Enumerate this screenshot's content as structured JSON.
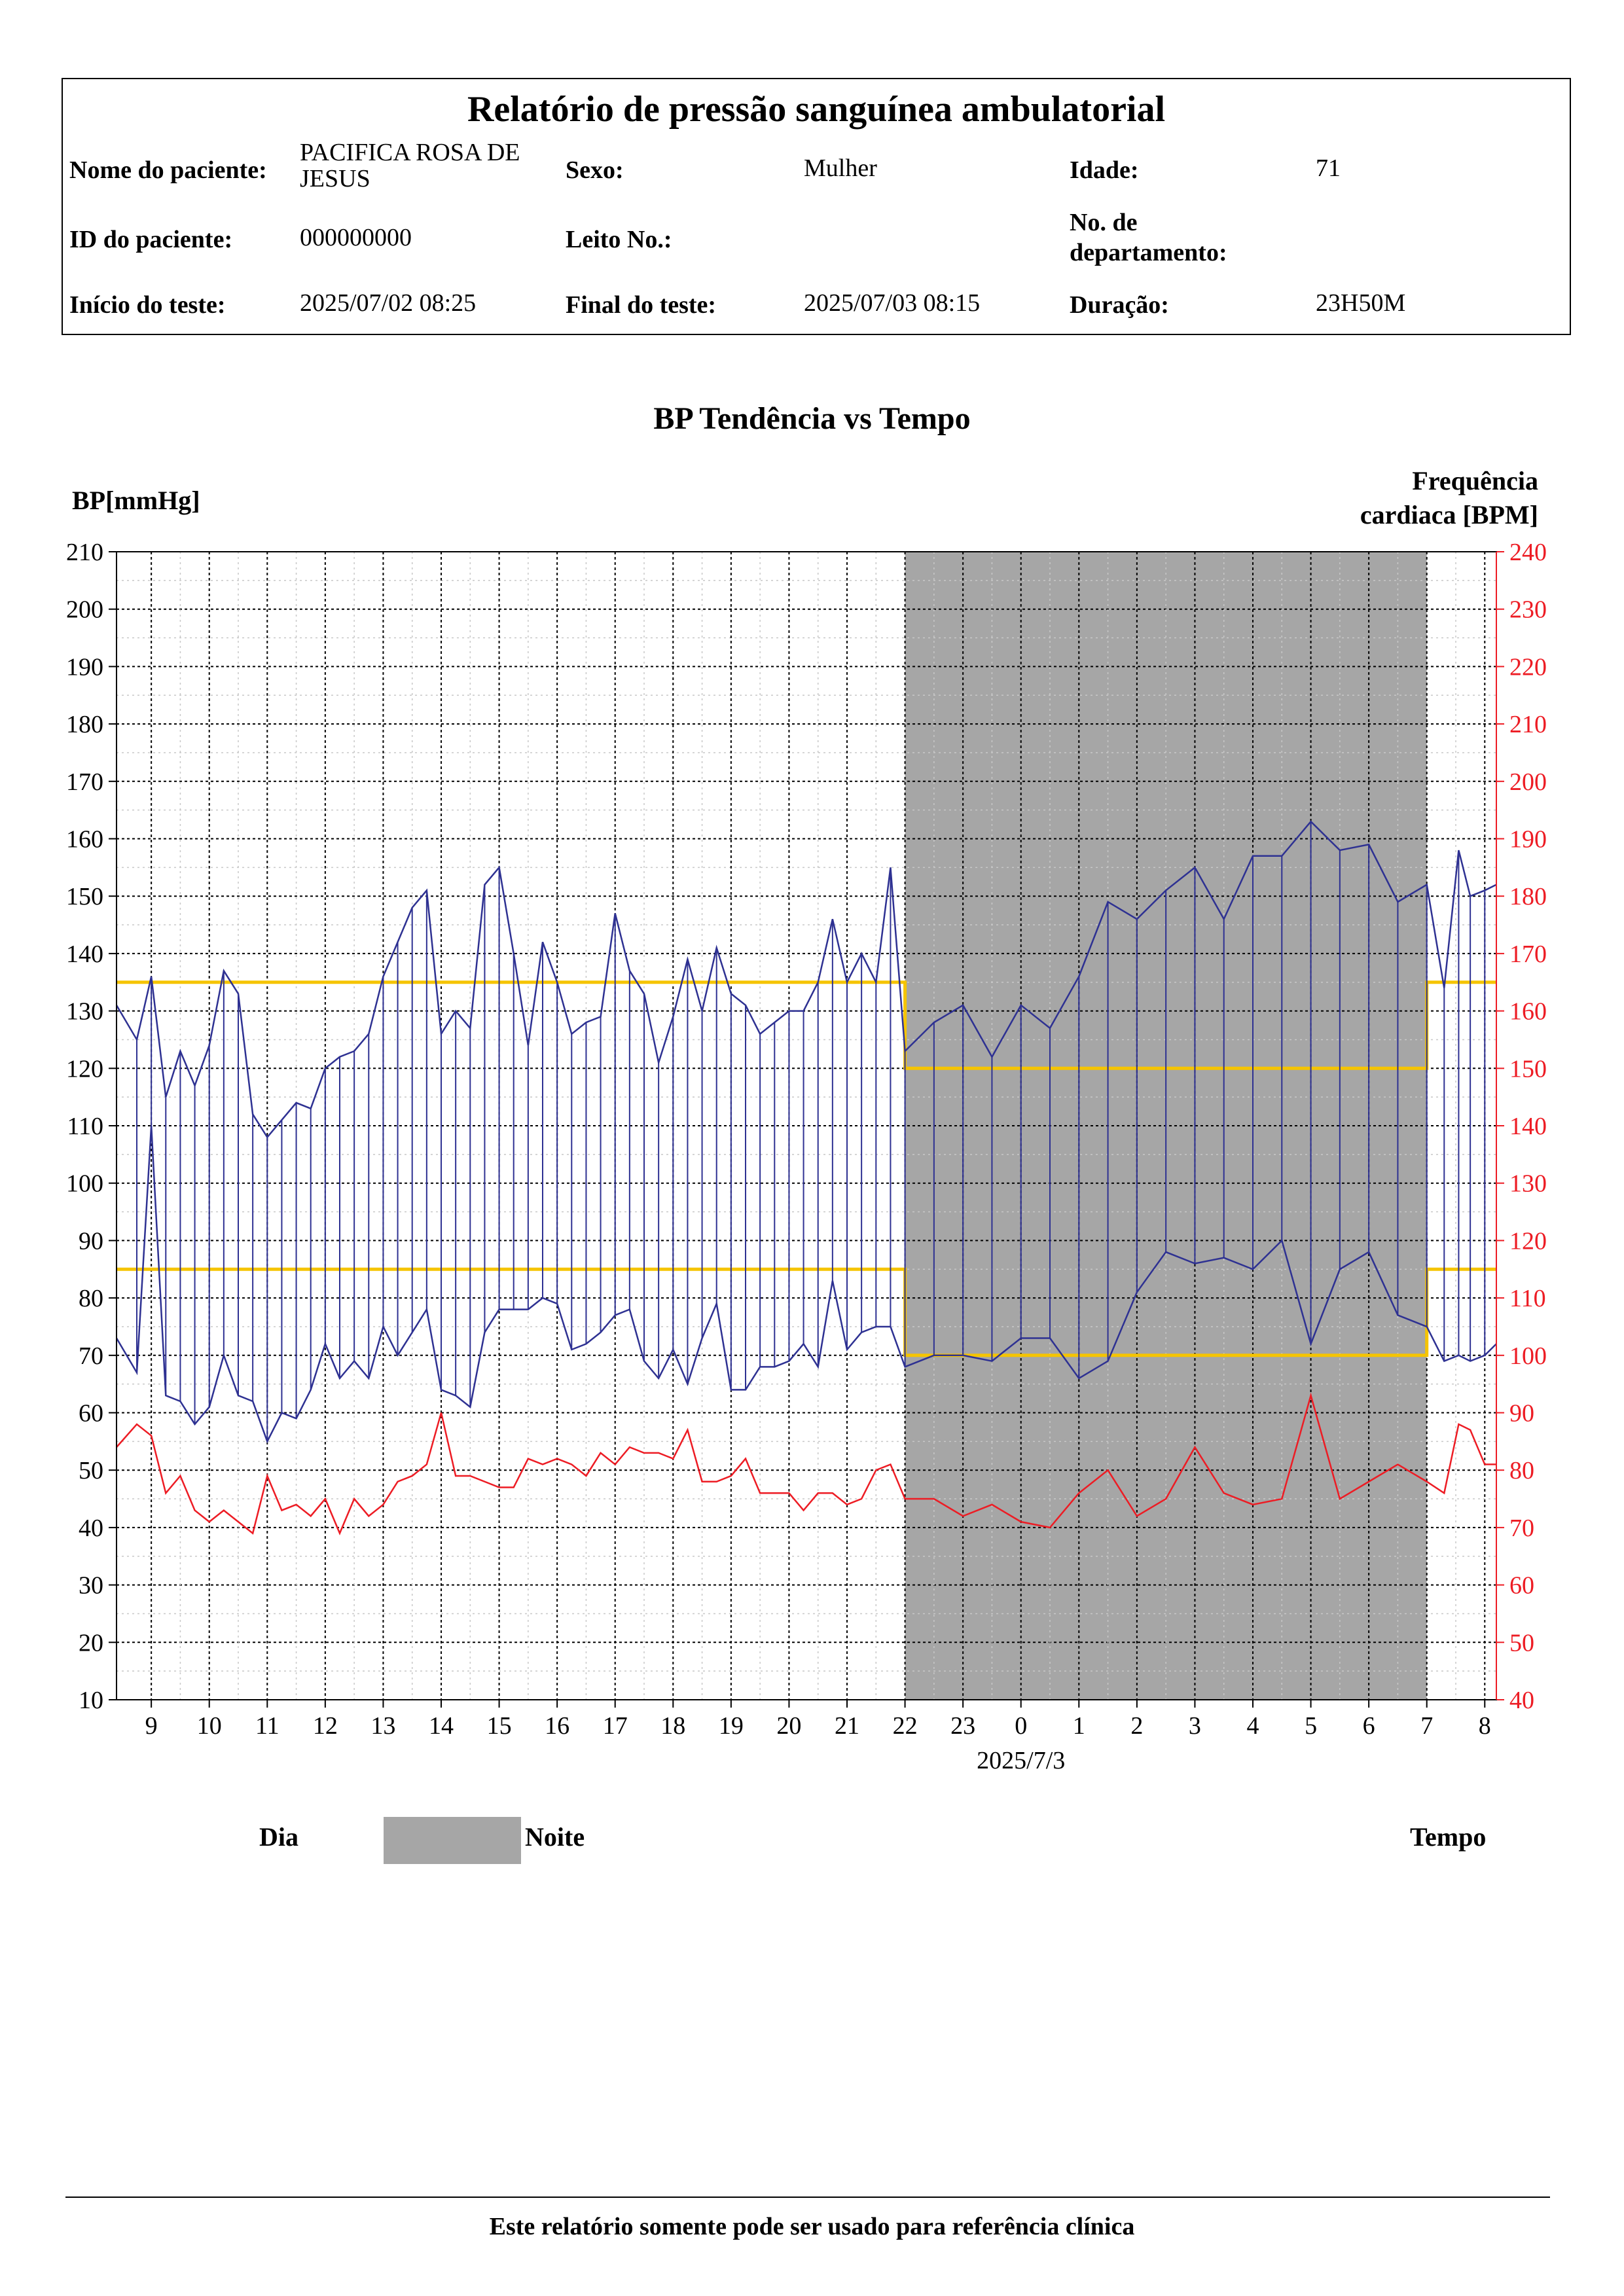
{
  "report": {
    "title": "Relatório de pressão sanguínea ambulatorial",
    "patient_name_label": "Nome do paciente:",
    "patient_name": "PACIFICA ROSA DE JESUS",
    "sex_label": "Sexo:",
    "sex": "Mulher",
    "age_label": "Idade:",
    "age": "71",
    "patient_id_label": "ID do paciente:",
    "patient_id": "000000000",
    "bed_label": "Leito No.:",
    "bed": "",
    "dept_label": "No. de departamento:",
    "dept": "",
    "start_label": "Início do teste:",
    "start": "2025/07/02 08:25",
    "end_label": "Final do teste:",
    "end": "2025/07/03 08:15",
    "duration_label": "Duração:",
    "duration": "23H50M"
  },
  "legend": {
    "day": "Dia",
    "night": "Noite",
    "time": "Tempo",
    "night_color": "#a6a6a6"
  },
  "footer": "Este relatório somente pode ser usado para referência clínica",
  "chart_data": {
    "type": "line",
    "title": "BP Tendência vs Tempo",
    "ylabel": "BP[mmHg]",
    "y2label": "Frequência cardiaca [BPM]",
    "ylim": [
      10,
      210
    ],
    "y2lim": [
      40,
      240
    ],
    "y_ticks": [
      10,
      20,
      30,
      40,
      50,
      60,
      70,
      80,
      90,
      100,
      110,
      120,
      130,
      140,
      150,
      160,
      170,
      180,
      190,
      200,
      210
    ],
    "y2_ticks": [
      40,
      50,
      60,
      70,
      80,
      90,
      100,
      110,
      120,
      130,
      140,
      150,
      160,
      170,
      180,
      190,
      200,
      210,
      220,
      230,
      240
    ],
    "x_range_hours": [
      8.4,
      32.2
    ],
    "x_tick_labels": [
      "9",
      "10",
      "11",
      "12",
      "13",
      "14",
      "15",
      "16",
      "17",
      "18",
      "19",
      "20",
      "21",
      "22",
      "23",
      "0",
      "1",
      "2",
      "3",
      "4",
      "5",
      "6",
      "7",
      "8"
    ],
    "x_date_label": "2025/7/3",
    "night_period": [
      22,
      31
    ],
    "grid": true,
    "colors": {
      "bp": "#2e3192",
      "hr": "#ed1c24",
      "limits": "#f5c400",
      "hr_axis": "#ed1c24"
    },
    "limits": [
      {
        "name": "systolic_limit",
        "segments": [
          [
            8.4,
            22,
            135
          ],
          [
            22,
            31,
            120
          ],
          [
            31,
            32.2,
            135
          ]
        ]
      },
      {
        "name": "diastolic_limit",
        "segments": [
          [
            8.4,
            22,
            85
          ],
          [
            22,
            31,
            70
          ],
          [
            31,
            32.2,
            85
          ]
        ]
      }
    ],
    "series": [
      {
        "role": "systolic",
        "x": [
          8.4,
          8.75,
          9.0,
          9.25,
          9.5,
          9.75,
          10.0,
          10.25,
          10.5,
          10.75,
          11.0,
          11.25,
          11.5,
          11.75,
          12.0,
          12.25,
          12.5,
          12.75,
          13.0,
          13.25,
          13.5,
          13.75,
          14.0,
          14.25,
          14.5,
          14.75,
          15.0,
          15.25,
          15.5,
          15.75,
          16.0,
          16.25,
          16.5,
          16.75,
          17.0,
          17.25,
          17.5,
          17.75,
          18.0,
          18.25,
          18.5,
          18.75,
          19.0,
          19.25,
          19.5,
          19.75,
          20.0,
          20.25,
          20.5,
          20.75,
          21.0,
          21.25,
          21.5,
          21.75,
          22.0,
          22.5,
          23.0,
          23.5,
          24.0,
          24.5,
          25.0,
          25.5,
          26.0,
          26.5,
          27.0,
          27.5,
          28.0,
          28.5,
          29.0,
          29.5,
          30.0,
          30.5,
          31.0,
          31.3,
          31.55,
          31.75,
          32.0,
          32.2
        ],
        "values": [
          131,
          125,
          136,
          115,
          123,
          117,
          124,
          137,
          133,
          112,
          108,
          111,
          114,
          113,
          120,
          122,
          123,
          126,
          136,
          142,
          148,
          151,
          126,
          130,
          127,
          152,
          155,
          140,
          124,
          142,
          135,
          126,
          128,
          129,
          147,
          137,
          133,
          121,
          129,
          139,
          130,
          141,
          133,
          131,
          126,
          128,
          130,
          130,
          135,
          146,
          135,
          140,
          135,
          155,
          123,
          128,
          131,
          122,
          131,
          127,
          136,
          149,
          146,
          151,
          155,
          146,
          157,
          157,
          163,
          158,
          159,
          149,
          152,
          134,
          158,
          150,
          151,
          152
        ]
      },
      {
        "role": "diastolic",
        "x": [
          8.4,
          8.75,
          9.0,
          9.25,
          9.5,
          9.75,
          10.0,
          10.25,
          10.5,
          10.75,
          11.0,
          11.25,
          11.5,
          11.75,
          12.0,
          12.25,
          12.5,
          12.75,
          13.0,
          13.25,
          13.5,
          13.75,
          14.0,
          14.25,
          14.5,
          14.75,
          15.0,
          15.25,
          15.5,
          15.75,
          16.0,
          16.25,
          16.5,
          16.75,
          17.0,
          17.25,
          17.5,
          17.75,
          18.0,
          18.25,
          18.5,
          18.75,
          19.0,
          19.25,
          19.5,
          19.75,
          20.0,
          20.25,
          20.5,
          20.75,
          21.0,
          21.25,
          21.5,
          21.75,
          22.0,
          22.5,
          23.0,
          23.5,
          24.0,
          24.5,
          25.0,
          25.5,
          26.0,
          26.5,
          27.0,
          27.5,
          28.0,
          28.5,
          29.0,
          29.5,
          30.0,
          30.5,
          31.0,
          31.3,
          31.55,
          31.75,
          32.0,
          32.2
        ],
        "values": [
          73,
          67,
          110,
          63,
          62,
          58,
          61,
          70,
          63,
          62,
          55,
          60,
          59,
          64,
          72,
          66,
          69,
          66,
          75,
          70,
          74,
          78,
          64,
          63,
          61,
          74,
          78,
          78,
          78,
          80,
          79,
          71,
          72,
          74,
          77,
          78,
          69,
          66,
          71,
          65,
          73,
          79,
          64,
          64,
          68,
          68,
          69,
          72,
          68,
          83,
          71,
          74,
          75,
          75,
          68,
          70,
          70,
          69,
          73,
          73,
          66,
          69,
          81,
          88,
          86,
          87,
          85,
          90,
          72,
          85,
          88,
          77,
          75,
          69,
          70,
          69,
          70,
          72
        ]
      },
      {
        "role": "heart_rate",
        "x": [
          8.4,
          8.75,
          9.0,
          9.25,
          9.5,
          9.75,
          10.0,
          10.25,
          10.5,
          10.75,
          11.0,
          11.25,
          11.5,
          11.75,
          12.0,
          12.25,
          12.5,
          12.75,
          13.0,
          13.25,
          13.5,
          13.75,
          14.0,
          14.25,
          14.5,
          14.75,
          15.0,
          15.25,
          15.5,
          15.75,
          16.0,
          16.25,
          16.5,
          16.75,
          17.0,
          17.25,
          17.5,
          17.75,
          18.0,
          18.25,
          18.5,
          18.75,
          19.0,
          19.25,
          19.5,
          19.75,
          20.0,
          20.25,
          20.5,
          20.75,
          21.0,
          21.25,
          21.5,
          21.75,
          22.0,
          22.5,
          23.0,
          23.5,
          24.0,
          24.5,
          25.0,
          25.5,
          26.0,
          26.5,
          27.0,
          27.5,
          28.0,
          28.5,
          29.0,
          29.5,
          30.0,
          30.5,
          31.0,
          31.3,
          31.55,
          31.75,
          32.0,
          32.2
        ],
        "values": [
          84,
          88,
          86,
          76,
          79,
          73,
          71,
          73,
          71,
          69,
          79,
          73,
          74,
          72,
          75,
          69,
          75,
          72,
          74,
          78,
          79,
          81,
          90,
          79,
          79,
          78,
          77,
          77,
          82,
          81,
          82,
          81,
          79,
          83,
          81,
          84,
          83,
          83,
          82,
          87,
          78,
          78,
          79,
          82,
          76,
          76,
          76,
          73,
          76,
          76,
          74,
          75,
          80,
          81,
          75,
          75,
          72,
          74,
          71,
          70,
          76,
          80,
          72,
          75,
          84,
          76,
          74,
          75,
          93,
          75,
          78,
          81,
          78,
          76,
          88,
          87,
          81,
          81
        ]
      }
    ]
  }
}
